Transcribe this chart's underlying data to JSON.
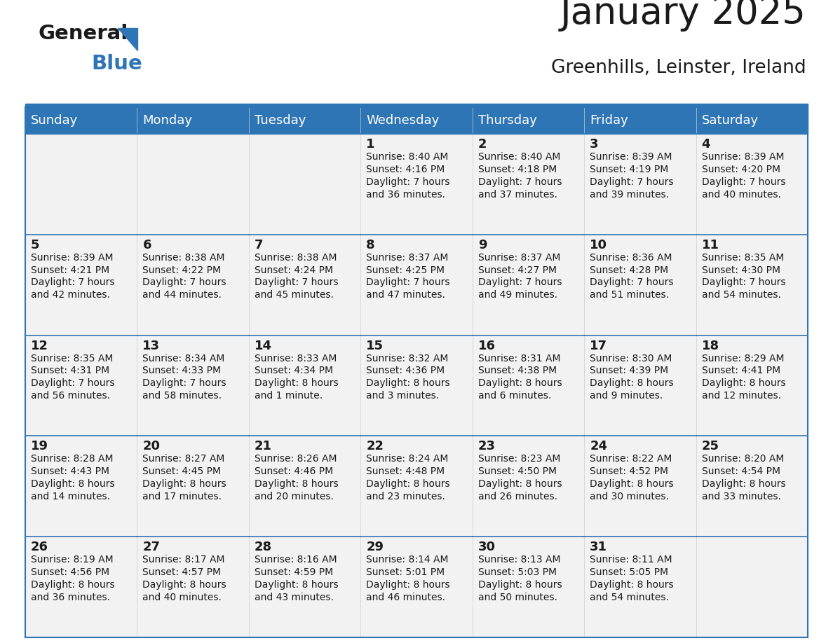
{
  "title": "January 2025",
  "subtitle": "Greenhills, Leinster, Ireland",
  "days_of_week": [
    "Sunday",
    "Monday",
    "Tuesday",
    "Wednesday",
    "Thursday",
    "Friday",
    "Saturday"
  ],
  "header_bg": "#2E75B6",
  "header_text": "#FFFFFF",
  "cell_bg": "#F2F2F2",
  "cell_text": "#333333",
  "border_color": "#2E75B6",
  "calendar": [
    [
      {
        "day": "",
        "info": ""
      },
      {
        "day": "",
        "info": ""
      },
      {
        "day": "",
        "info": ""
      },
      {
        "day": "1",
        "info": "Sunrise: 8:40 AM\nSunset: 4:16 PM\nDaylight: 7 hours\nand 36 minutes."
      },
      {
        "day": "2",
        "info": "Sunrise: 8:40 AM\nSunset: 4:18 PM\nDaylight: 7 hours\nand 37 minutes."
      },
      {
        "day": "3",
        "info": "Sunrise: 8:39 AM\nSunset: 4:19 PM\nDaylight: 7 hours\nand 39 minutes."
      },
      {
        "day": "4",
        "info": "Sunrise: 8:39 AM\nSunset: 4:20 PM\nDaylight: 7 hours\nand 40 minutes."
      }
    ],
    [
      {
        "day": "5",
        "info": "Sunrise: 8:39 AM\nSunset: 4:21 PM\nDaylight: 7 hours\nand 42 minutes."
      },
      {
        "day": "6",
        "info": "Sunrise: 8:38 AM\nSunset: 4:22 PM\nDaylight: 7 hours\nand 44 minutes."
      },
      {
        "day": "7",
        "info": "Sunrise: 8:38 AM\nSunset: 4:24 PM\nDaylight: 7 hours\nand 45 minutes."
      },
      {
        "day": "8",
        "info": "Sunrise: 8:37 AM\nSunset: 4:25 PM\nDaylight: 7 hours\nand 47 minutes."
      },
      {
        "day": "9",
        "info": "Sunrise: 8:37 AM\nSunset: 4:27 PM\nDaylight: 7 hours\nand 49 minutes."
      },
      {
        "day": "10",
        "info": "Sunrise: 8:36 AM\nSunset: 4:28 PM\nDaylight: 7 hours\nand 51 minutes."
      },
      {
        "day": "11",
        "info": "Sunrise: 8:35 AM\nSunset: 4:30 PM\nDaylight: 7 hours\nand 54 minutes."
      }
    ],
    [
      {
        "day": "12",
        "info": "Sunrise: 8:35 AM\nSunset: 4:31 PM\nDaylight: 7 hours\nand 56 minutes."
      },
      {
        "day": "13",
        "info": "Sunrise: 8:34 AM\nSunset: 4:33 PM\nDaylight: 7 hours\nand 58 minutes."
      },
      {
        "day": "14",
        "info": "Sunrise: 8:33 AM\nSunset: 4:34 PM\nDaylight: 8 hours\nand 1 minute."
      },
      {
        "day": "15",
        "info": "Sunrise: 8:32 AM\nSunset: 4:36 PM\nDaylight: 8 hours\nand 3 minutes."
      },
      {
        "day": "16",
        "info": "Sunrise: 8:31 AM\nSunset: 4:38 PM\nDaylight: 8 hours\nand 6 minutes."
      },
      {
        "day": "17",
        "info": "Sunrise: 8:30 AM\nSunset: 4:39 PM\nDaylight: 8 hours\nand 9 minutes."
      },
      {
        "day": "18",
        "info": "Sunrise: 8:29 AM\nSunset: 4:41 PM\nDaylight: 8 hours\nand 12 minutes."
      }
    ],
    [
      {
        "day": "19",
        "info": "Sunrise: 8:28 AM\nSunset: 4:43 PM\nDaylight: 8 hours\nand 14 minutes."
      },
      {
        "day": "20",
        "info": "Sunrise: 8:27 AM\nSunset: 4:45 PM\nDaylight: 8 hours\nand 17 minutes."
      },
      {
        "day": "21",
        "info": "Sunrise: 8:26 AM\nSunset: 4:46 PM\nDaylight: 8 hours\nand 20 minutes."
      },
      {
        "day": "22",
        "info": "Sunrise: 8:24 AM\nSunset: 4:48 PM\nDaylight: 8 hours\nand 23 minutes."
      },
      {
        "day": "23",
        "info": "Sunrise: 8:23 AM\nSunset: 4:50 PM\nDaylight: 8 hours\nand 26 minutes."
      },
      {
        "day": "24",
        "info": "Sunrise: 8:22 AM\nSunset: 4:52 PM\nDaylight: 8 hours\nand 30 minutes."
      },
      {
        "day": "25",
        "info": "Sunrise: 8:20 AM\nSunset: 4:54 PM\nDaylight: 8 hours\nand 33 minutes."
      }
    ],
    [
      {
        "day": "26",
        "info": "Sunrise: 8:19 AM\nSunset: 4:56 PM\nDaylight: 8 hours\nand 36 minutes."
      },
      {
        "day": "27",
        "info": "Sunrise: 8:17 AM\nSunset: 4:57 PM\nDaylight: 8 hours\nand 40 minutes."
      },
      {
        "day": "28",
        "info": "Sunrise: 8:16 AM\nSunset: 4:59 PM\nDaylight: 8 hours\nand 43 minutes."
      },
      {
        "day": "29",
        "info": "Sunrise: 8:14 AM\nSunset: 5:01 PM\nDaylight: 8 hours\nand 46 minutes."
      },
      {
        "day": "30",
        "info": "Sunrise: 8:13 AM\nSunset: 5:03 PM\nDaylight: 8 hours\nand 50 minutes."
      },
      {
        "day": "31",
        "info": "Sunrise: 8:11 AM\nSunset: 5:05 PM\nDaylight: 8 hours\nand 54 minutes."
      },
      {
        "day": "",
        "info": ""
      }
    ]
  ]
}
